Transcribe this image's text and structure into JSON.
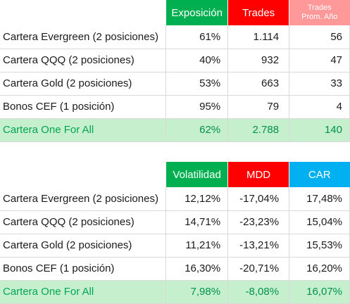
{
  "table1": {
    "headers": [
      "Exposición",
      "Trades",
      "Trades",
      "Prom. Año"
    ],
    "rows": [
      {
        "name": "Cartera Evergreen (2 posiciones)",
        "values": [
          "61%",
          "1.114",
          "56"
        ]
      },
      {
        "name": "Cartera QQQ (2 posiciones)",
        "values": [
          "40%",
          "932",
          "47"
        ]
      },
      {
        "name": "Cartera Gold (2 posiciones)",
        "values": [
          "53%",
          "663",
          "33"
        ]
      },
      {
        "name": "Bonos CEF (1 posición)",
        "values": [
          "95%",
          "79",
          "4"
        ]
      },
      {
        "name": "Cartera One For All",
        "values": [
          "62%",
          "2.788",
          "140"
        ]
      }
    ]
  },
  "table2": {
    "headers": [
      "Volatilidad",
      "MDD",
      "CAR"
    ],
    "rows": [
      {
        "name": "Cartera Evergreen (2 posiciones)",
        "values": [
          "12,12%",
          "-17,04%",
          "17,48%"
        ]
      },
      {
        "name": "Cartera QQQ (2 posiciones)",
        "values": [
          "14,71%",
          "-23,23%",
          "15,04%"
        ]
      },
      {
        "name": "Cartera Gold (2 posiciones)",
        "values": [
          "11,21%",
          "-13,21%",
          "15,53%"
        ]
      },
      {
        "name": "Bonos CEF (1 posición)",
        "values": [
          "16,30%",
          "-20,71%",
          "16,20%"
        ]
      },
      {
        "name": "Cartera One For All",
        "values": [
          "7,98%",
          "-8,08%",
          "16,07%"
        ]
      }
    ]
  },
  "colors": {
    "header_green": "#00b050",
    "header_red": "#ff0000",
    "header_pink": "#ff9999",
    "header_blue": "#00b0f0",
    "total_row_bg": "#c6efce",
    "total_row_text": "#00a651"
  }
}
